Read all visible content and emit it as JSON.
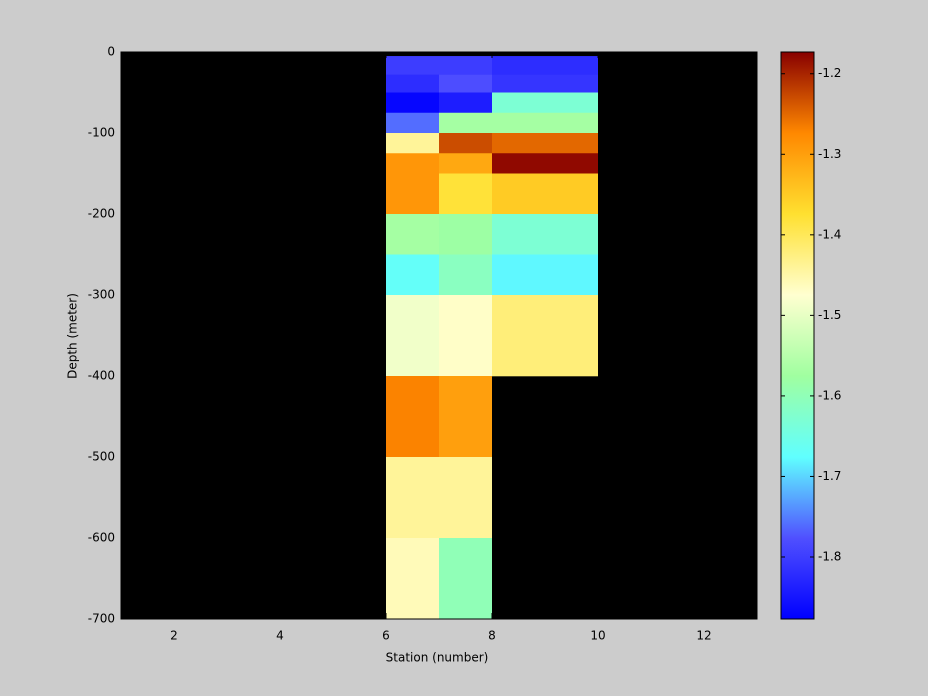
{
  "chart_data": {
    "type": "heatmap",
    "xlabel": "Station (number)",
    "ylabel": "Depth (meter)",
    "x_edges": [
      6,
      7,
      8,
      10
    ],
    "y_edges": [
      -5,
      -28,
      -50,
      -75,
      -100,
      -125,
      -150,
      -200,
      -250,
      -300,
      -400,
      -500,
      -600,
      -700
    ],
    "values": [
      [
        -1.8,
        -1.8,
        -1.82
      ],
      [
        -1.82,
        -1.78,
        -1.81
      ],
      [
        -1.87,
        -1.84,
        -1.63
      ],
      [
        -1.76,
        -1.57,
        -1.57
      ],
      [
        -1.44,
        -1.23,
        -1.25
      ],
      [
        -1.29,
        -1.31,
        -1.18
      ],
      [
        -1.29,
        -1.38,
        -1.35
      ],
      [
        -1.57,
        -1.58,
        -1.63
      ],
      [
        -1.67,
        -1.61,
        -1.68
      ],
      [
        -1.49,
        -1.47,
        -1.42
      ],
      [
        -1.27,
        -1.3,
        null
      ],
      [
        -1.44,
        -1.44,
        null
      ],
      [
        -1.46,
        -1.6,
        null
      ]
    ],
    "xlim": [
      1,
      13
    ],
    "xticks": [
      2,
      4,
      6,
      8,
      10,
      12
    ],
    "ylim": [
      -700,
      0
    ],
    "yticks": [
      -700,
      -600,
      -500,
      -400,
      -300,
      -200,
      -100,
      0
    ],
    "clim": [
      -1.877,
      -1.173
    ],
    "cticks": [
      -1.8,
      -1.7,
      -1.6,
      -1.5,
      -1.4,
      -1.3,
      -1.2
    ],
    "colormap": [
      "#0000ff",
      "#5050ff",
      "#60ffff",
      "#a0ffa0",
      "#ffffd0",
      "#ffe030",
      "#ff8800",
      "#880000"
    ],
    "background": "#000000"
  }
}
